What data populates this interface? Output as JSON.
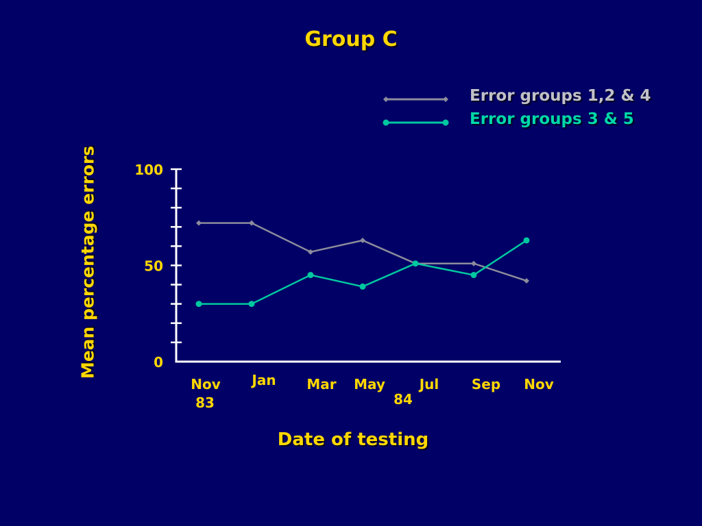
{
  "slide_title": "Group C",
  "chart_data": {
    "type": "line",
    "title": "Group C",
    "xlabel": "Date of testing",
    "ylabel": "Mean percentage errors",
    "ylim": [
      0,
      100
    ],
    "yticks": [
      "0",
      "50",
      "100"
    ],
    "categories": [
      "Nov 83",
      "Jan",
      "Mar",
      "May",
      "Jul",
      "Sep",
      "Nov"
    ],
    "x_tick_labels": [
      "Nov",
      "Jan",
      "Mar",
      "May",
      "Jul",
      "Sep",
      "Nov"
    ],
    "x_sublabels": [
      "83",
      "84"
    ],
    "series": [
      {
        "name": "Error groups 1,2 & 4",
        "color": "#8c8c9c",
        "values": [
          72,
          72,
          57,
          63,
          51,
          51,
          42
        ]
      },
      {
        "name": "Error groups 3 & 5",
        "color": "#00c8a0",
        "values": [
          30,
          30,
          45,
          39,
          51,
          45,
          63
        ]
      }
    ],
    "grid": false,
    "legend_position": "top-right"
  },
  "colors": {
    "background": "#000066",
    "text": "#ffd700",
    "axis": "#ffffff"
  }
}
